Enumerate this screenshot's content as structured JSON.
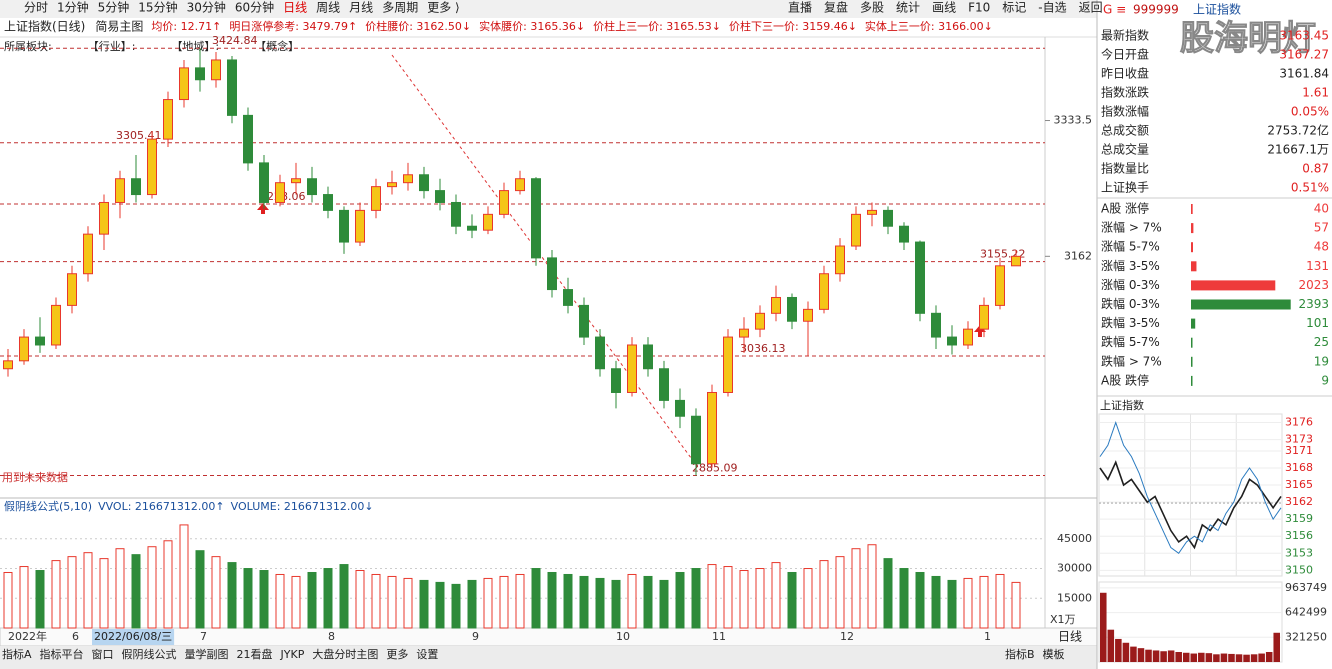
{
  "toolbar": {
    "periods": [
      "分时",
      "1分钟",
      "5分钟",
      "15分钟",
      "30分钟",
      "60分钟",
      "日线",
      "周线",
      "月线",
      "多周期",
      "更多 ⟩"
    ],
    "tools": [
      "直播",
      "复盘",
      "多股",
      "统计",
      "画线",
      "F10",
      "标记",
      "-自选",
      "返回"
    ]
  },
  "header": {
    "title": "上证指数(日线)",
    "indicator": "简易主图",
    "items": [
      "均价: 12.71↑",
      "明日涨停参考: 3479.79↑",
      "价柱腰价: 3162.50↓",
      "实体腰价: 3165.36↓",
      "价柱上三一价: 3165.53↓",
      "价柱下三一价: 3159.46↓",
      "实体上三一价: 3166.00↓"
    ]
  },
  "sector": [
    "所属板块:",
    "【行业】:",
    "【地域】:",
    "【概念】"
  ],
  "future_note": "用到未来数据",
  "cursor_date": "2022/06/08/三",
  "period_label": "日线",
  "volume_header": [
    "假阴线公式(5,10)",
    "VVOL: 216671312.00↑",
    "VOLUME: 216671312.00↓"
  ],
  "volume_unit": "X1万",
  "tabs_left": [
    "指标A",
    "指标平台",
    "窗口",
    "假阴线公式",
    "量学副图",
    "21看盘",
    "JYKP",
    "大盘分时主图",
    "更多",
    "设置"
  ],
  "tabs_right": [
    "指标B",
    "模板"
  ],
  "quote": {
    "code": "999999",
    "name": "上证指数",
    "watermark": "股海明灯",
    "stats": [
      {
        "label": "最新指数",
        "value": "3163.45",
        "color": "#e02020"
      },
      {
        "label": "今日开盘",
        "value": "3167.27",
        "color": "#e02020"
      },
      {
        "label": "昨日收盘",
        "value": "3161.84",
        "color": "#222222"
      },
      {
        "label": "指数涨跌",
        "value": "1.61",
        "color": "#e02020"
      },
      {
        "label": "指数涨幅",
        "value": "0.05%",
        "color": "#e02020"
      },
      {
        "label": "总成交额",
        "value": "2753.72亿",
        "color": "#222222"
      },
      {
        "label": "总成交量",
        "value": "21667.1万",
        "color": "#222222"
      },
      {
        "label": "指数量比",
        "value": "0.87",
        "color": "#e02020"
      },
      {
        "label": "上证换手",
        "value": "0.51%",
        "color": "#e02020"
      }
    ],
    "rise": {
      "color": "#ee3b3b",
      "labels": [
        "A股 涨停",
        "涨幅 > 7%",
        "涨幅 5-7%",
        "涨幅 3-5%",
        "涨幅 0-3%"
      ],
      "values": [
        40,
        57,
        48,
        131,
        2023
      ]
    },
    "fall": {
      "color": "#2e8b3a",
      "labels": [
        "跌幅 0-3%",
        "跌幅 3-5%",
        "跌幅 5-7%",
        "跌幅 > 7%",
        "A股 跌停"
      ],
      "values": [
        2393,
        101,
        25,
        19,
        9
      ]
    },
    "breadth_max": 2400
  },
  "intraday_title": "上证指数",
  "chart_data": [
    {
      "type": "candlestick",
      "up_color": "#e8382c",
      "down_color": "#2e8b3a",
      "ylim": [
        2858,
        3439
      ],
      "yticks": [
        3333.5,
        3162
      ],
      "categories": [
        "2022年",
        null,
        null,
        null,
        "6",
        null,
        null,
        null,
        null,
        null,
        null,
        null,
        "7",
        null,
        null,
        null,
        null,
        null,
        null,
        null,
        "8",
        null,
        null,
        null,
        null,
        null,
        null,
        null,
        null,
        "9",
        null,
        null,
        null,
        null,
        null,
        null,
        null,
        null,
        "10",
        null,
        null,
        null,
        null,
        null,
        "11",
        null,
        null,
        null,
        null,
        null,
        null,
        null,
        "12",
        null,
        null,
        null,
        null,
        null,
        null,
        null,
        null,
        "1",
        null,
        null
      ],
      "levels": [
        {
          "value": 3424.84,
          "at": 13
        },
        {
          "value": 3305.41,
          "at": 7
        },
        {
          "value": 3228.06,
          "at": 16
        },
        {
          "value": 3036.13,
          "at": 46
        },
        {
          "value": 2885.09,
          "at": 43
        },
        {
          "value": 3155.22,
          "at": 61
        }
      ],
      "candles": [
        [
          3020,
          3045,
          3010,
          3030
        ],
        [
          3030,
          3070,
          3025,
          3060
        ],
        [
          3060,
          3085,
          3040,
          3050
        ],
        [
          3050,
          3110,
          3045,
          3100
        ],
        [
          3100,
          3150,
          3090,
          3140
        ],
        [
          3140,
          3200,
          3130,
          3190
        ],
        [
          3190,
          3240,
          3170,
          3230
        ],
        [
          3230,
          3270,
          3210,
          3260
        ],
        [
          3260,
          3290,
          3230,
          3240
        ],
        [
          3240,
          3320,
          3235,
          3310
        ],
        [
          3310,
          3370,
          3300,
          3360
        ],
        [
          3360,
          3410,
          3350,
          3400
        ],
        [
          3400,
          3425,
          3370,
          3385
        ],
        [
          3385,
          3420,
          3375,
          3410
        ],
        [
          3410,
          3415,
          3330,
          3340
        ],
        [
          3340,
          3350,
          3270,
          3280
        ],
        [
          3280,
          3290,
          3222,
          3230
        ],
        [
          3230,
          3265,
          3225,
          3255
        ],
        [
          3255,
          3280,
          3240,
          3260
        ],
        [
          3260,
          3275,
          3230,
          3240
        ],
        [
          3240,
          3250,
          3210,
          3220
        ],
        [
          3220,
          3225,
          3165,
          3180
        ],
        [
          3180,
          3230,
          3175,
          3220
        ],
        [
          3220,
          3260,
          3210,
          3250
        ],
        [
          3250,
          3270,
          3240,
          3255
        ],
        [
          3255,
          3280,
          3245,
          3265
        ],
        [
          3265,
          3275,
          3235,
          3245
        ],
        [
          3245,
          3260,
          3220,
          3230
        ],
        [
          3230,
          3240,
          3190,
          3200
        ],
        [
          3200,
          3215,
          3185,
          3195
        ],
        [
          3195,
          3225,
          3190,
          3215
        ],
        [
          3215,
          3255,
          3210,
          3245
        ],
        [
          3245,
          3270,
          3240,
          3260
        ],
        [
          3260,
          3262,
          3150,
          3160
        ],
        [
          3160,
          3170,
          3110,
          3120
        ],
        [
          3120,
          3135,
          3090,
          3100
        ],
        [
          3100,
          3110,
          3050,
          3060
        ],
        [
          3060,
          3070,
          3010,
          3020
        ],
        [
          3020,
          3030,
          2970,
          2990
        ],
        [
          2990,
          3060,
          2985,
          3050
        ],
        [
          3050,
          3060,
          3010,
          3020
        ],
        [
          3020,
          3030,
          2970,
          2980
        ],
        [
          2980,
          2995,
          2945,
          2960
        ],
        [
          2960,
          2970,
          2885,
          2900
        ],
        [
          2900,
          3000,
          2895,
          2990
        ],
        [
          2990,
          3070,
          2985,
          3060
        ],
        [
          3060,
          3085,
          3040,
          3070
        ],
        [
          3070,
          3100,
          3060,
          3090
        ],
        [
          3090,
          3125,
          3080,
          3110
        ],
        [
          3110,
          3115,
          3070,
          3080
        ],
        [
          3080,
          3105,
          3036,
          3095
        ],
        [
          3095,
          3150,
          3090,
          3140
        ],
        [
          3140,
          3185,
          3130,
          3175
        ],
        [
          3175,
          3225,
          3170,
          3215
        ],
        [
          3215,
          3230,
          3200,
          3220
        ],
        [
          3220,
          3225,
          3190,
          3200
        ],
        [
          3200,
          3205,
          3170,
          3180
        ],
        [
          3180,
          3182,
          3080,
          3090
        ],
        [
          3090,
          3100,
          3045,
          3060
        ],
        [
          3060,
          3075,
          3038,
          3050
        ],
        [
          3050,
          3080,
          3045,
          3070
        ],
        [
          3070,
          3110,
          3060,
          3100
        ],
        [
          3100,
          3160,
          3095,
          3150
        ],
        [
          3150,
          3170,
          3150,
          3162
        ]
      ]
    },
    {
      "type": "volume",
      "ylim": [
        0,
        57000
      ],
      "yticks": [
        15000,
        30000,
        45000
      ],
      "values": [
        28000,
        31000,
        29000,
        34000,
        36000,
        38000,
        35000,
        40000,
        37000,
        41000,
        44000,
        52000,
        39000,
        36000,
        33000,
        30000,
        29000,
        27000,
        26000,
        28000,
        30000,
        32000,
        29000,
        27000,
        26000,
        25000,
        24000,
        23000,
        22000,
        24000,
        25000,
        26000,
        27000,
        30000,
        28000,
        27000,
        26000,
        25000,
        24000,
        27000,
        26000,
        24000,
        28000,
        30000,
        32000,
        31000,
        29000,
        30000,
        33000,
        28000,
        30000,
        34000,
        36000,
        40000,
        42000,
        35000,
        30000,
        28000,
        26000,
        24000,
        25000,
        26000,
        27000,
        23000
      ]
    },
    {
      "type": "line",
      "ylim": [
        3149,
        3177.5
      ],
      "base": 3161.84,
      "yticks": [
        3176,
        3173,
        3171,
        3168,
        3165,
        3162,
        3159,
        3156,
        3153,
        3150
      ],
      "series": [
        {
          "color": "#1f1f1f",
          "values": [
            3168,
            3166,
            3169,
            3165,
            3166,
            3164,
            3162,
            3163,
            3160,
            3157,
            3155,
            3156,
            3154,
            3158,
            3157,
            3159,
            3158,
            3161,
            3163,
            3166,
            3165,
            3163,
            3161,
            3163
          ]
        },
        {
          "color": "#2b7bc0",
          "values": [
            3170,
            3172,
            3176,
            3172,
            3170,
            3167,
            3163,
            3160,
            3157,
            3154,
            3153,
            3155,
            3156,
            3155,
            3158,
            3157,
            3160,
            3162,
            3166,
            3168,
            3166,
            3162,
            3159,
            3161
          ]
        }
      ]
    },
    {
      "type": "bar",
      "color": "#9b1b1b",
      "ylim": [
        0,
        1040000
      ],
      "yticks": [
        321250,
        642499,
        963749
      ],
      "values": [
        900000,
        420000,
        300000,
        250000,
        200000,
        180000,
        160000,
        150000,
        140000,
        150000,
        130000,
        120000,
        110000,
        120000,
        115000,
        100000,
        110000,
        105000,
        100000,
        95000,
        100000,
        110000,
        130000,
        380000
      ]
    }
  ]
}
